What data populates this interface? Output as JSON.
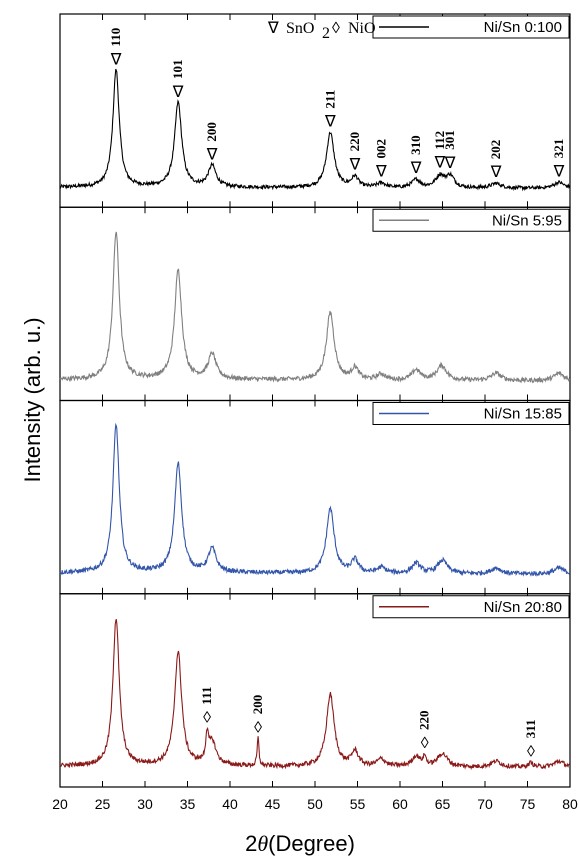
{
  "chart_data": {
    "type": "line",
    "xlabel_prefix": "2",
    "xlabel_symbol": "θ",
    "xlabel_suffix": "(Degree)",
    "ylabel": "Intensity (arb. u.)",
    "xlim": [
      20,
      80
    ],
    "x_ticks": [
      "20",
      "25",
      "30",
      "35",
      "40",
      "45",
      "50",
      "55",
      "60",
      "65",
      "70",
      "75",
      "80"
    ],
    "marker_legend": {
      "sno2_symbol": "∇",
      "sno2_label": "SnO",
      "sno2_subscript": "2",
      "nio_symbol": "◊",
      "nio_label": "NiO"
    },
    "series": [
      {
        "name": "Ni/Sn 0:100",
        "color": "#000000",
        "peaks": [
          {
            "x": 26.6,
            "y": 1.0,
            "w": 0.45
          },
          {
            "x": 33.9,
            "y": 0.72,
            "w": 0.5
          },
          {
            "x": 37.9,
            "y": 0.18,
            "w": 0.55
          },
          {
            "x": 51.8,
            "y": 0.47,
            "w": 0.55
          },
          {
            "x": 54.7,
            "y": 0.09,
            "w": 0.5
          },
          {
            "x": 57.8,
            "y": 0.04,
            "w": 0.6
          },
          {
            "x": 61.9,
            "y": 0.07,
            "w": 0.6
          },
          {
            "x": 64.7,
            "y": 0.1,
            "w": 0.6
          },
          {
            "x": 65.9,
            "y": 0.1,
            "w": 0.6
          },
          {
            "x": 71.3,
            "y": 0.04,
            "w": 0.7
          },
          {
            "x": 78.7,
            "y": 0.05,
            "w": 0.7
          }
        ],
        "annotations": [
          {
            "x": 26.6,
            "label": "110",
            "marker": "∇"
          },
          {
            "x": 33.9,
            "label": "101",
            "marker": "∇"
          },
          {
            "x": 37.9,
            "label": "200",
            "marker": "∇"
          },
          {
            "x": 51.8,
            "label": "211",
            "marker": "∇"
          },
          {
            "x": 54.7,
            "label": "220",
            "marker": "∇"
          },
          {
            "x": 57.8,
            "label": "002",
            "marker": "∇"
          },
          {
            "x": 61.9,
            "label": "310",
            "marker": "∇"
          },
          {
            "x": 64.7,
            "label": "112",
            "marker": "∇"
          },
          {
            "x": 65.9,
            "label": "301",
            "marker": "∇"
          },
          {
            "x": 71.3,
            "label": "202",
            "marker": "∇"
          },
          {
            "x": 78.7,
            "label": "321",
            "marker": "∇"
          }
        ]
      },
      {
        "name": "Ni/Sn 5:95",
        "color": "#808080",
        "peaks": [
          {
            "x": 26.6,
            "y": 1.0,
            "w": 0.45
          },
          {
            "x": 33.9,
            "y": 0.74,
            "w": 0.5
          },
          {
            "x": 37.9,
            "y": 0.17,
            "w": 0.55
          },
          {
            "x": 51.8,
            "y": 0.46,
            "w": 0.55
          },
          {
            "x": 54.7,
            "y": 0.08,
            "w": 0.5
          },
          {
            "x": 57.8,
            "y": 0.04,
            "w": 0.6
          },
          {
            "x": 61.9,
            "y": 0.07,
            "w": 0.6
          },
          {
            "x": 64.9,
            "y": 0.1,
            "w": 0.7
          },
          {
            "x": 71.3,
            "y": 0.05,
            "w": 0.7
          },
          {
            "x": 78.7,
            "y": 0.05,
            "w": 0.7
          }
        ],
        "annotations": []
      },
      {
        "name": "Ni/Sn 15:85",
        "color": "#3355aa",
        "peaks": [
          {
            "x": 26.6,
            "y": 1.0,
            "w": 0.45
          },
          {
            "x": 33.9,
            "y": 0.74,
            "w": 0.5
          },
          {
            "x": 37.9,
            "y": 0.16,
            "w": 0.55
          },
          {
            "x": 51.8,
            "y": 0.44,
            "w": 0.55
          },
          {
            "x": 54.7,
            "y": 0.09,
            "w": 0.5
          },
          {
            "x": 57.8,
            "y": 0.04,
            "w": 0.6
          },
          {
            "x": 61.9,
            "y": 0.07,
            "w": 0.6
          },
          {
            "x": 65.0,
            "y": 0.09,
            "w": 0.7
          },
          {
            "x": 71.3,
            "y": 0.04,
            "w": 0.7
          },
          {
            "x": 78.7,
            "y": 0.04,
            "w": 0.7
          }
        ],
        "annotations": []
      },
      {
        "name": "Ni/Sn 20:80",
        "color": "#8b1a1a",
        "peaks": [
          {
            "x": 26.6,
            "y": 1.0,
            "w": 0.45
          },
          {
            "x": 33.9,
            "y": 0.77,
            "w": 0.5
          },
          {
            "x": 37.3,
            "y": 0.17,
            "w": 0.18
          },
          {
            "x": 37.9,
            "y": 0.16,
            "w": 0.55
          },
          {
            "x": 43.3,
            "y": 0.19,
            "w": 0.12
          },
          {
            "x": 51.8,
            "y": 0.49,
            "w": 0.55
          },
          {
            "x": 54.7,
            "y": 0.1,
            "w": 0.5
          },
          {
            "x": 57.8,
            "y": 0.05,
            "w": 0.6
          },
          {
            "x": 61.9,
            "y": 0.07,
            "w": 0.6
          },
          {
            "x": 62.9,
            "y": 0.06,
            "w": 0.2
          },
          {
            "x": 65.0,
            "y": 0.09,
            "w": 0.7
          },
          {
            "x": 71.3,
            "y": 0.04,
            "w": 0.7
          },
          {
            "x": 75.4,
            "y": 0.03,
            "w": 0.3
          },
          {
            "x": 78.7,
            "y": 0.04,
            "w": 0.7
          }
        ],
        "annotations": [
          {
            "x": 37.3,
            "label": "111",
            "marker": "◊"
          },
          {
            "x": 43.3,
            "label": "200",
            "marker": "◊"
          },
          {
            "x": 62.9,
            "label": "220",
            "marker": "◊"
          },
          {
            "x": 75.4,
            "label": "311",
            "marker": "◊"
          }
        ]
      }
    ]
  }
}
